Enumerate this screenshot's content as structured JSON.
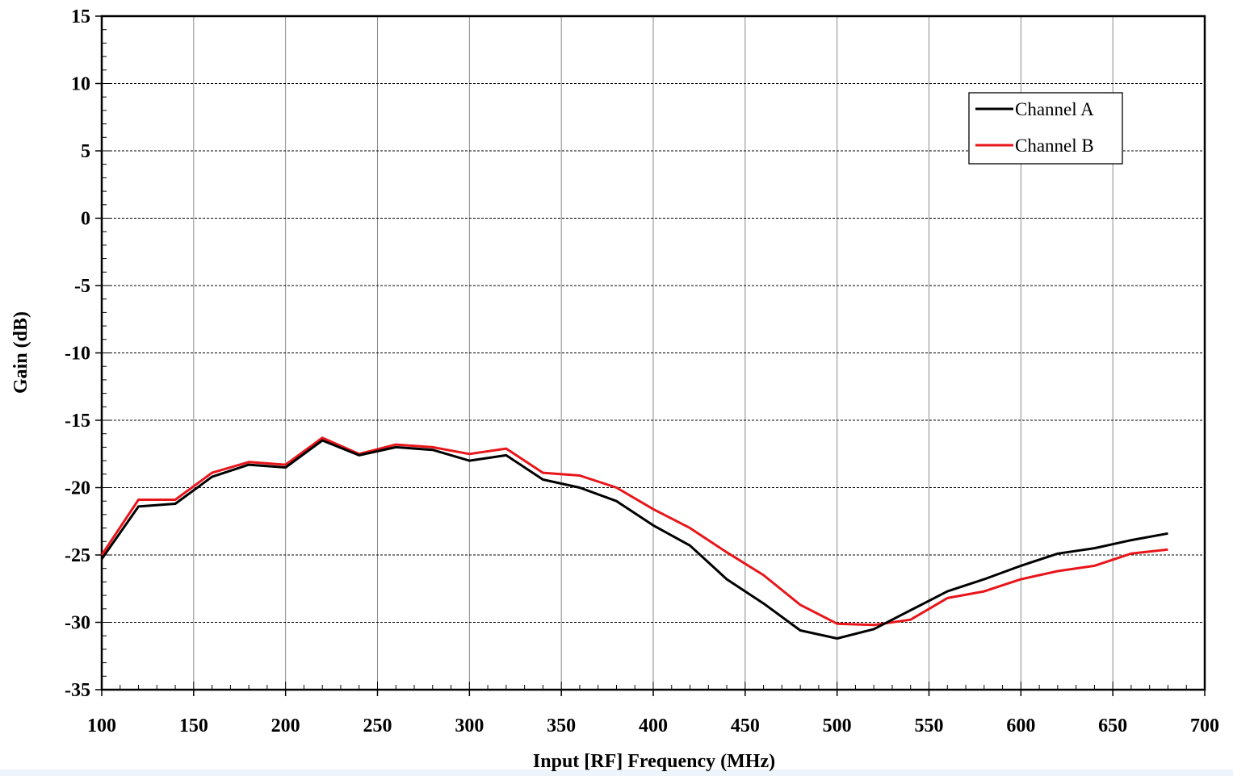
{
  "chart_data": {
    "type": "line",
    "title": "",
    "xlabel": "Input [RF] Frequency (MHz)",
    "ylabel": "Gain (dB)",
    "xlim": [
      100,
      700
    ],
    "ylim": [
      -35,
      15
    ],
    "x_ticks": [
      100,
      150,
      200,
      250,
      300,
      350,
      400,
      450,
      500,
      550,
      600,
      650,
      700
    ],
    "y_ticks": [
      15,
      10,
      5,
      0,
      -5,
      -10,
      -15,
      -20,
      -25,
      -30,
      -35
    ],
    "grid": true,
    "legend_position": "top-right",
    "x": [
      100,
      120,
      140,
      160,
      180,
      200,
      220,
      240,
      260,
      280,
      300,
      320,
      340,
      360,
      380,
      400,
      420,
      440,
      460,
      480,
      500,
      520,
      540,
      560,
      580,
      600,
      620,
      640,
      660,
      680
    ],
    "series": [
      {
        "name": "Channel A",
        "color": "#000000",
        "values": [
          -25.3,
          -21.4,
          -21.2,
          -19.2,
          -18.3,
          -18.5,
          -16.5,
          -17.6,
          -17.0,
          -17.2,
          -18.0,
          -17.6,
          -19.4,
          -20.0,
          -21.0,
          -22.8,
          -24.3,
          -26.8,
          -28.6,
          -30.6,
          -31.2,
          -30.5,
          -29.1,
          -27.7,
          -26.8,
          -25.8,
          -24.9,
          -24.5,
          -23.9,
          -23.4
        ]
      },
      {
        "name": "Channel B",
        "color": "#e8161b",
        "values": [
          -25.0,
          -20.9,
          -20.9,
          -18.9,
          -18.1,
          -18.3,
          -16.3,
          -17.5,
          -16.8,
          -17.0,
          -17.5,
          -17.1,
          -18.9,
          -19.1,
          -20.0,
          -21.6,
          -23.0,
          -24.8,
          -26.5,
          -28.7,
          -30.1,
          -30.2,
          -29.8,
          -28.2,
          -27.7,
          -26.8,
          -26.2,
          -25.8,
          -24.9,
          -24.6
        ]
      }
    ]
  }
}
